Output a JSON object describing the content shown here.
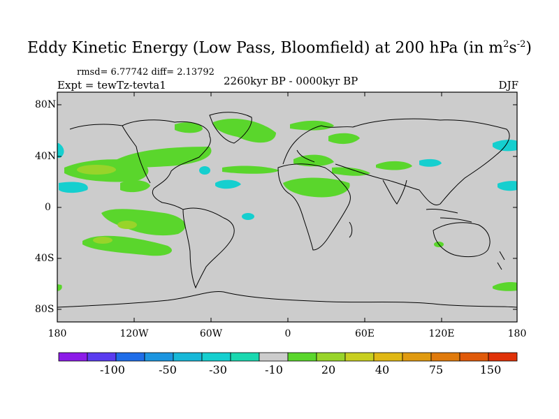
{
  "title": {
    "main": "Eddy Kinetic Energy (Low Pass, Bloomfield) at 200 hPa (in m",
    "sup1": "2",
    "mid": "s",
    "sup2": "-2",
    "end": ")"
  },
  "stats": "rmsd= 6.77742 diff= 2.13792",
  "experiment": "Expt = tewTz-tevta1",
  "period": "2260kyr BP - 0000kyr BP",
  "season": "DJF",
  "lat_labels": [
    "80N",
    "40N",
    "0",
    "40S",
    "80S"
  ],
  "lon_labels": [
    "180",
    "120W",
    "60W",
    "0",
    "60E",
    "120E",
    "180"
  ],
  "colorbar": {
    "labels": [
      "-100",
      "-50",
      "-30",
      "-10",
      "20",
      "40",
      "75",
      "150"
    ],
    "colors": [
      "#8c1be8",
      "#5a3cf0",
      "#1f6de8",
      "#1c95e0",
      "#17b8d8",
      "#15cfcf",
      "#1ad8b0",
      "#cccccc",
      "#5ad62c",
      "#98d42a",
      "#c8cf20",
      "#e0b814",
      "#e09a10",
      "#e07a0c",
      "#e05a0a",
      "#e03208"
    ]
  },
  "map": {
    "background_color": "#cccccc"
  }
}
